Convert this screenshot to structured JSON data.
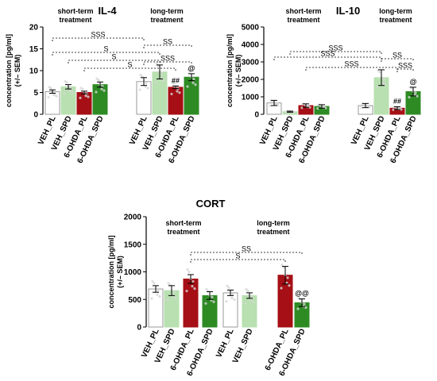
{
  "colors": {
    "veh_pl_fill": "#ffffff",
    "veh_spd_fill": "#b8e0b0",
    "ohda_pl_fill": "#a50f15",
    "ohda_spd_fill": "#2e8b24",
    "stroke": "#000000"
  },
  "chart_data": [
    {
      "type": "bar",
      "title": "IL-4",
      "ylabel": "concentration [pg/ml] (+/– SEM)",
      "ylabel_line1": "concentration [pg/ml]",
      "ylabel_line2": "(+/– SEM)",
      "ylim": [
        0,
        20
      ],
      "yticks": [
        "0",
        "5",
        "10",
        "15",
        "20"
      ],
      "group_labels": [
        {
          "line1": "short-term",
          "line2": "treatment"
        },
        {
          "line1": "long-term",
          "line2": "treatment"
        }
      ],
      "categories": [
        "VEH_PL",
        "VEH_SPD",
        "6-OHDA_PL",
        "6-OHDA_SPD",
        "VEH_PL",
        "VEH_SPD",
        "6-OHDA_PL",
        "6-OHDA_SPD"
      ],
      "values": [
        5.2,
        6.3,
        5.0,
        6.8,
        7.5,
        9.7,
        6.2,
        8.5
      ],
      "errors": [
        0.4,
        0.5,
        0.3,
        0.6,
        0.9,
        1.6,
        0.3,
        0.8
      ],
      "bar_annotations": [
        {
          "bar": 6,
          "text": "##"
        },
        {
          "bar": 7,
          "text": "@"
        }
      ],
      "comparisons": [
        {
          "from": 0,
          "to": 4,
          "label": "SSS"
        },
        {
          "from": 4,
          "to": 7,
          "label": "SS"
        },
        {
          "from": 0,
          "to": 5,
          "label": "S"
        },
        {
          "from": 1,
          "to": 5,
          "label": "S"
        },
        {
          "from": 4,
          "to": 7,
          "label": "SSS"
        },
        {
          "from": 2,
          "to": 6,
          "label": "S"
        }
      ]
    },
    {
      "type": "bar",
      "title": "IL-10",
      "ylabel_line1": "concentration [pg/ml]",
      "ylabel_line2": "(+/– SEM)",
      "ylim": [
        0,
        5000
      ],
      "yticks": [
        "0",
        "1000",
        "2000",
        "3000",
        "4000",
        "5000"
      ],
      "group_labels": [
        {
          "line1": "short-term",
          "line2": "treatment"
        },
        {
          "line1": "long-term",
          "line2": "treatment"
        }
      ],
      "categories": [
        "VEH_PL",
        "VEH_SPD",
        "6-OHDA_PL",
        "6-OHDA_SPD",
        "VEH_PL",
        "VEH_SPD",
        "6-OHDA_PL",
        "6-OHDA_SPD"
      ],
      "values": [
        650,
        150,
        500,
        450,
        500,
        2100,
        350,
        1300
      ],
      "errors": [
        150,
        30,
        100,
        100,
        120,
        450,
        80,
        250
      ],
      "bar_annotations": [
        {
          "bar": 6,
          "text": "##"
        },
        {
          "bar": 7,
          "text": "@"
        }
      ],
      "comparisons": [
        {
          "from": 1,
          "to": 5,
          "label": "SSS"
        },
        {
          "from": 0,
          "to": 5,
          "label": "SSS"
        },
        {
          "from": 5,
          "to": 7,
          "label": "SS"
        },
        {
          "from": 2,
          "to": 6,
          "label": "SSS"
        },
        {
          "from": 6,
          "to": 7,
          "label": "SSS"
        }
      ]
    },
    {
      "type": "bar",
      "title": "CORT",
      "ylabel_line1": "concentration [pg/ml]",
      "ylabel_line2": "(+/– SEM)",
      "ylim": [
        0,
        2000
      ],
      "yticks": [
        "0",
        "500",
        "1000",
        "1500",
        "2000"
      ],
      "group_labels": [
        {
          "line1": "short-term",
          "line2": "treatment"
        },
        {
          "line1": "long-term",
          "line2": "treatment"
        }
      ],
      "categories": [
        "VEH_PL",
        "VEH_SPD",
        "6-OHDA_PL",
        "6-OHDA_SPD",
        "VEH_PL",
        "VEH_SPD",
        "6-OHDA_PL",
        "6-OHDA_SPD"
      ],
      "values": [
        690,
        660,
        870,
        570,
        620,
        570,
        940,
        440
      ],
      "errors": [
        60,
        90,
        80,
        70,
        50,
        50,
        160,
        70
      ],
      "bar_annotations": [
        {
          "bar": 7,
          "text": "@@"
        }
      ],
      "comparisons": [
        {
          "from": 2,
          "to": 7,
          "label": "SS"
        },
        {
          "from": 2,
          "to": 6,
          "label": "S"
        }
      ]
    }
  ]
}
